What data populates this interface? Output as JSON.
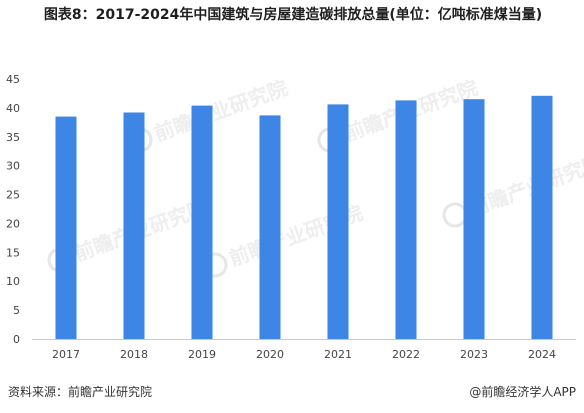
{
  "chart_data": {
    "type": "bar",
    "title": "图表8：2017-2024年中国建筑与房屋建造碳排放总量(单位：亿吨标准煤当量)",
    "categories": [
      "2017",
      "2018",
      "2019",
      "2020",
      "2021",
      "2022",
      "2023",
      "2024"
    ],
    "values": [
      38.5,
      39.2,
      40.4,
      38.7,
      40.6,
      41.3,
      41.5,
      42.1
    ],
    "ylim": [
      0,
      45
    ],
    "yticks": [
      0,
      5,
      10,
      15,
      20,
      25,
      30,
      35,
      40,
      45
    ],
    "grid": false,
    "bar_color": "#3d86e6",
    "xlabel": "",
    "ylabel": ""
  },
  "footer": {
    "source": "资料来源：前瞻产业研究院",
    "credit": "@前瞻经济学人APP"
  },
  "watermark": {
    "text": "前瞻产业研究院"
  }
}
